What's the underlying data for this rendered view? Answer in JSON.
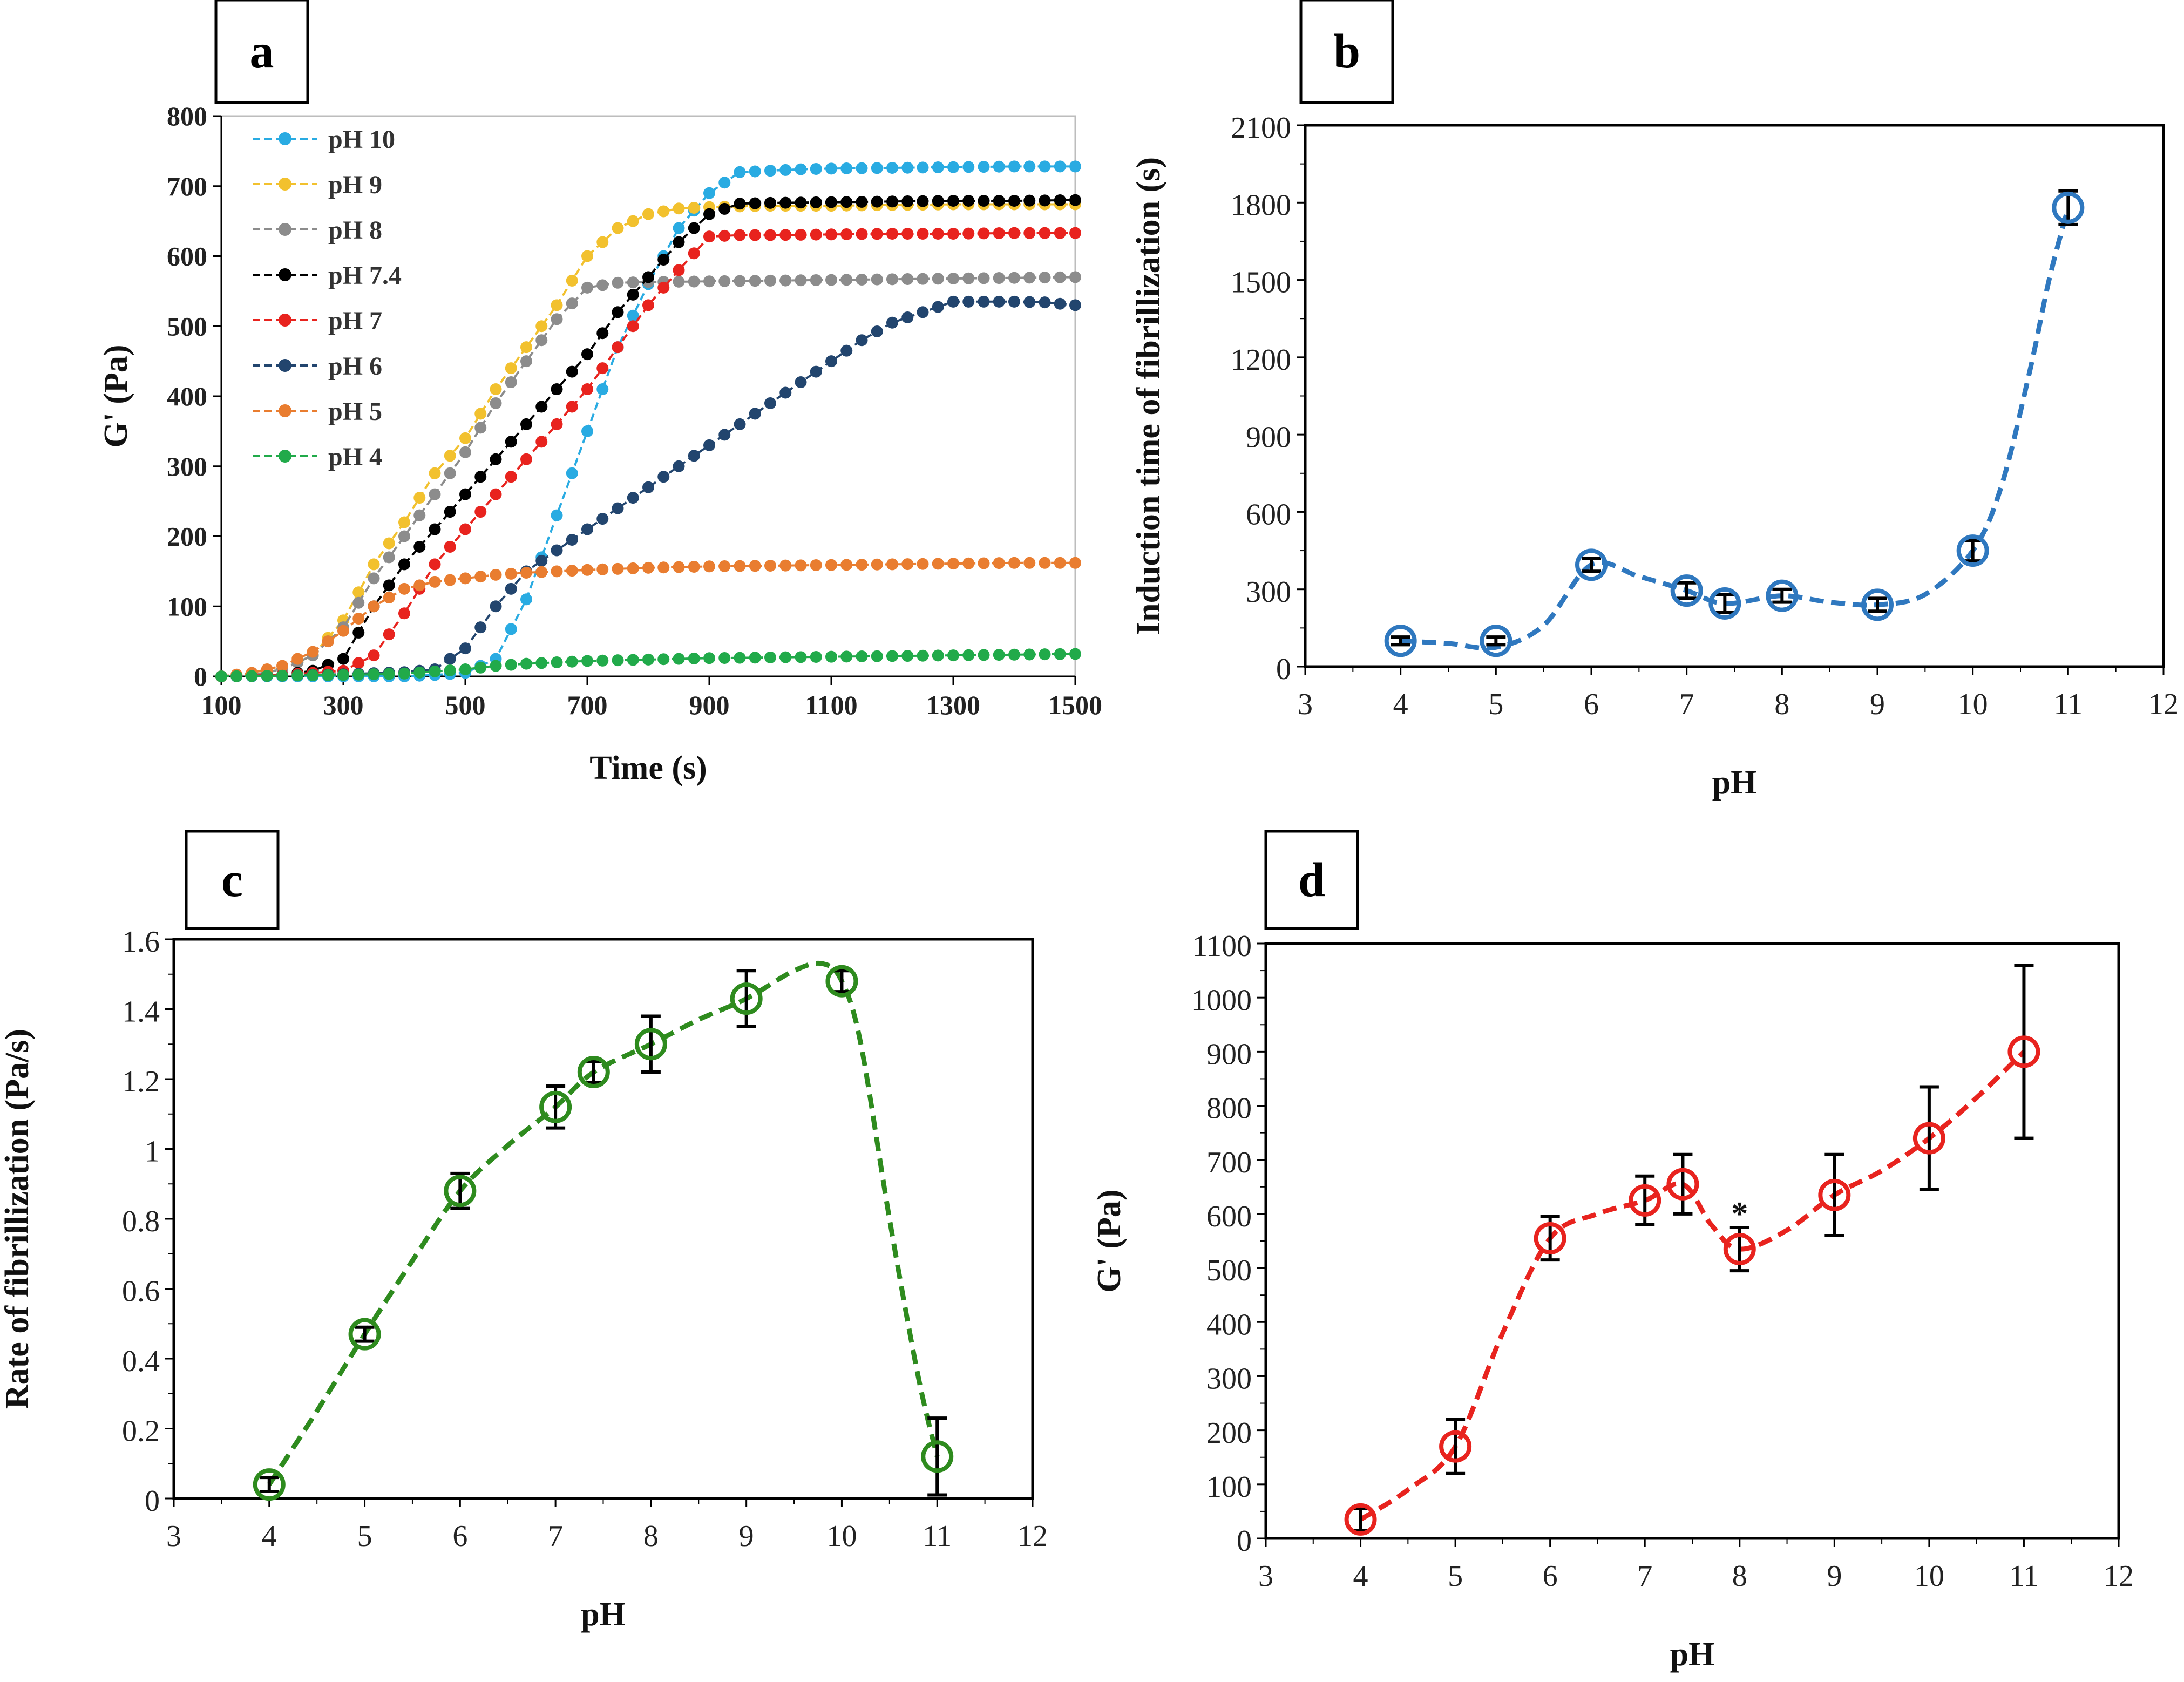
{
  "figure": {
    "panel_labels": [
      "a",
      "b",
      "c",
      "d"
    ]
  },
  "chart_data": [
    {
      "panel": "a",
      "type": "line",
      "title": "",
      "xlabel": "Time  (s)",
      "ylabel": "G' (Pa)",
      "xlim": [
        100,
        1500
      ],
      "ylim": [
        0,
        800
      ],
      "xticks": [
        100,
        300,
        500,
        700,
        900,
        1100,
        1300,
        1500
      ],
      "yticks": [
        0,
        100,
        200,
        300,
        400,
        500,
        600,
        700,
        800
      ],
      "legend_position": "top-left",
      "series": [
        {
          "name": "pH 10",
          "color": "#29ABE2",
          "x": [
            100,
            200,
            300,
            400,
            450,
            500,
            550,
            600,
            650,
            700,
            750,
            800,
            850,
            900,
            950,
            1000,
            1050,
            1100,
            1200,
            1300,
            1400,
            1500
          ],
          "y": [
            0,
            0,
            0,
            0,
            2,
            5,
            25,
            110,
            230,
            350,
            470,
            560,
            640,
            690,
            720,
            722,
            724,
            725,
            726,
            727,
            728,
            728
          ]
        },
        {
          "name": "pH 9",
          "color": "#F2C12E",
          "x": [
            100,
            150,
            200,
            250,
            300,
            350,
            400,
            450,
            500,
            550,
            600,
            650,
            700,
            750,
            800,
            850,
            900,
            950,
            1000,
            1100,
            1200,
            1300,
            1400,
            1500
          ],
          "y": [
            0,
            2,
            10,
            30,
            80,
            160,
            220,
            290,
            340,
            410,
            470,
            530,
            600,
            640,
            660,
            668,
            670,
            671,
            672,
            672,
            673,
            674,
            674,
            674
          ]
        },
        {
          "name": "pH 8",
          "color": "#8C8C8C",
          "x": [
            100,
            150,
            200,
            250,
            300,
            350,
            400,
            450,
            500,
            550,
            600,
            650,
            700,
            750,
            800,
            900,
            1000,
            1100,
            1200,
            1300,
            1400,
            1500
          ],
          "y": [
            0,
            2,
            10,
            30,
            70,
            140,
            200,
            260,
            320,
            390,
            450,
            510,
            555,
            562,
            563,
            564,
            565,
            566,
            567,
            568,
            569,
            570
          ]
        },
        {
          "name": "pH 7.4",
          "color": "#000000",
          "x": [
            100,
            200,
            250,
            300,
            350,
            400,
            450,
            500,
            550,
            600,
            650,
            700,
            750,
            800,
            850,
            900,
            950,
            1000,
            1100,
            1200,
            1300,
            1400,
            1500
          ],
          "y": [
            0,
            2,
            8,
            25,
            100,
            160,
            210,
            260,
            310,
            360,
            410,
            460,
            520,
            570,
            620,
            660,
            675,
            676,
            677,
            678,
            679,
            679,
            680
          ]
        },
        {
          "name": "pH 7",
          "color": "#E8231E",
          "x": [
            100,
            200,
            300,
            350,
            400,
            450,
            500,
            550,
            600,
            650,
            700,
            750,
            800,
            850,
            900,
            950,
            1000,
            1100,
            1200,
            1300,
            1400,
            1500
          ],
          "y": [
            0,
            2,
            8,
            30,
            90,
            160,
            210,
            260,
            310,
            360,
            410,
            470,
            530,
            580,
            628,
            630,
            630,
            631,
            632,
            632,
            633,
            633
          ]
        },
        {
          "name": "pH 6",
          "color": "#22456E",
          "x": [
            100,
            200,
            300,
            400,
            450,
            500,
            550,
            600,
            650,
            700,
            750,
            800,
            850,
            900,
            950,
            1000,
            1050,
            1100,
            1150,
            1200,
            1250,
            1300,
            1350,
            1400,
            1450,
            1500
          ],
          "y": [
            0,
            1,
            3,
            6,
            10,
            40,
            100,
            150,
            180,
            210,
            240,
            270,
            300,
            330,
            360,
            390,
            420,
            450,
            480,
            505,
            520,
            535,
            535,
            535,
            534,
            530
          ]
        },
        {
          "name": "pH 5",
          "color": "#E97D30",
          "x": [
            100,
            150,
            200,
            250,
            300,
            350,
            400,
            450,
            500,
            550,
            600,
            650,
            700,
            800,
            900,
            1000,
            1100,
            1200,
            1300,
            1400,
            1500
          ],
          "y": [
            0,
            5,
            15,
            35,
            65,
            100,
            125,
            135,
            140,
            145,
            148,
            150,
            152,
            155,
            157,
            158,
            159,
            160,
            161,
            162,
            162
          ]
        },
        {
          "name": "pH 4",
          "color": "#21AA4A",
          "x": [
            100,
            200,
            300,
            400,
            500,
            550,
            600,
            700,
            800,
            900,
            1000,
            1100,
            1200,
            1300,
            1400,
            1500
          ],
          "y": [
            0,
            1,
            2,
            4,
            10,
            15,
            18,
            22,
            24,
            26,
            27,
            28,
            29,
            30,
            31,
            32
          ]
        }
      ]
    },
    {
      "panel": "b",
      "type": "scatter",
      "title": "",
      "xlabel": "pH",
      "ylabel": "Induction time of fibrillization (s)",
      "xlim": [
        3,
        12
      ],
      "ylim": [
        0,
        2100
      ],
      "xticks": [
        3,
        4,
        5,
        6,
        7,
        8,
        9,
        10,
        11,
        12
      ],
      "yticks": [
        0,
        300,
        600,
        900,
        1200,
        1500,
        1800,
        2100
      ],
      "color": "#2F78BF",
      "x": [
        4,
        5,
        6,
        7,
        7.4,
        8,
        9,
        10,
        11
      ],
      "y": [
        100,
        100,
        395,
        295,
        245,
        275,
        240,
        450,
        1780
      ],
      "error": [
        15,
        15,
        25,
        30,
        35,
        25,
        25,
        40,
        65
      ],
      "curve": {
        "x": [
          4,
          4.5,
          5,
          5.5,
          6,
          6.5,
          7,
          7.4,
          8,
          8.5,
          9,
          9.5,
          10,
          10.3,
          10.6,
          10.8,
          11
        ],
        "y": [
          100,
          90,
          75,
          160,
          395,
          350,
          295,
          245,
          275,
          250,
          240,
          280,
          450,
          700,
          1150,
          1500,
          1780
        ]
      }
    },
    {
      "panel": "c",
      "type": "scatter",
      "title": "",
      "xlabel": "pH",
      "ylabel": "Rate of  fibrillization (Pa/s)",
      "xlim": [
        3,
        12
      ],
      "ylim": [
        0,
        1.6
      ],
      "xticks": [
        3,
        4,
        5,
        6,
        7,
        8,
        9,
        10,
        11,
        12
      ],
      "yticks": [
        0,
        0.2,
        0.4,
        0.6,
        0.8,
        1,
        1.2,
        1.4,
        1.6
      ],
      "color": "#2E8B1E",
      "x": [
        4,
        5,
        6,
        7,
        7.4,
        8,
        9,
        10,
        11
      ],
      "y": [
        0.04,
        0.47,
        0.88,
        1.12,
        1.22,
        1.3,
        1.43,
        1.48,
        0.12
      ],
      "error": [
        0.02,
        0.02,
        0.05,
        0.06,
        0.03,
        0.08,
        0.08,
        0.03,
        0.11
      ],
      "curve": {
        "x": [
          4,
          4.5,
          5,
          5.5,
          6,
          6.5,
          7,
          7.4,
          8,
          8.5,
          9,
          9.5,
          9.8,
          10,
          10.2,
          10.5,
          10.8,
          11
        ],
        "y": [
          0.04,
          0.25,
          0.47,
          0.68,
          0.88,
          1.01,
          1.12,
          1.22,
          1.3,
          1.37,
          1.43,
          1.51,
          1.53,
          1.48,
          1.3,
          0.8,
          0.35,
          0.12
        ]
      }
    },
    {
      "panel": "d",
      "type": "scatter",
      "title": "",
      "xlabel": "pH",
      "ylabel": "G' (Pa)",
      "xlim": [
        3,
        12
      ],
      "ylim": [
        0,
        1100
      ],
      "xticks": [
        3,
        4,
        5,
        6,
        7,
        8,
        9,
        10,
        11,
        12
      ],
      "yticks": [
        0,
        100,
        200,
        300,
        400,
        500,
        600,
        700,
        800,
        900,
        1000,
        1100
      ],
      "color": "#E8231E",
      "x": [
        4,
        5,
        6,
        7,
        7.4,
        8,
        9,
        10,
        11
      ],
      "y": [
        35,
        170,
        555,
        625,
        655,
        535,
        635,
        740,
        900
      ],
      "error": [
        20,
        50,
        40,
        45,
        55,
        40,
        75,
        95,
        160
      ],
      "curve": {
        "x": [
          4,
          4.5,
          5,
          5.5,
          6,
          6.5,
          7,
          7.4,
          7.7,
          8,
          8.5,
          9,
          9.5,
          10,
          10.5,
          11
        ],
        "y": [
          35,
          90,
          170,
          380,
          555,
          600,
          625,
          655,
          580,
          535,
          570,
          635,
          680,
          740,
          815,
          900
        ]
      },
      "annotations": [
        {
          "x": 8,
          "y": 600,
          "text": "*"
        }
      ]
    }
  ]
}
